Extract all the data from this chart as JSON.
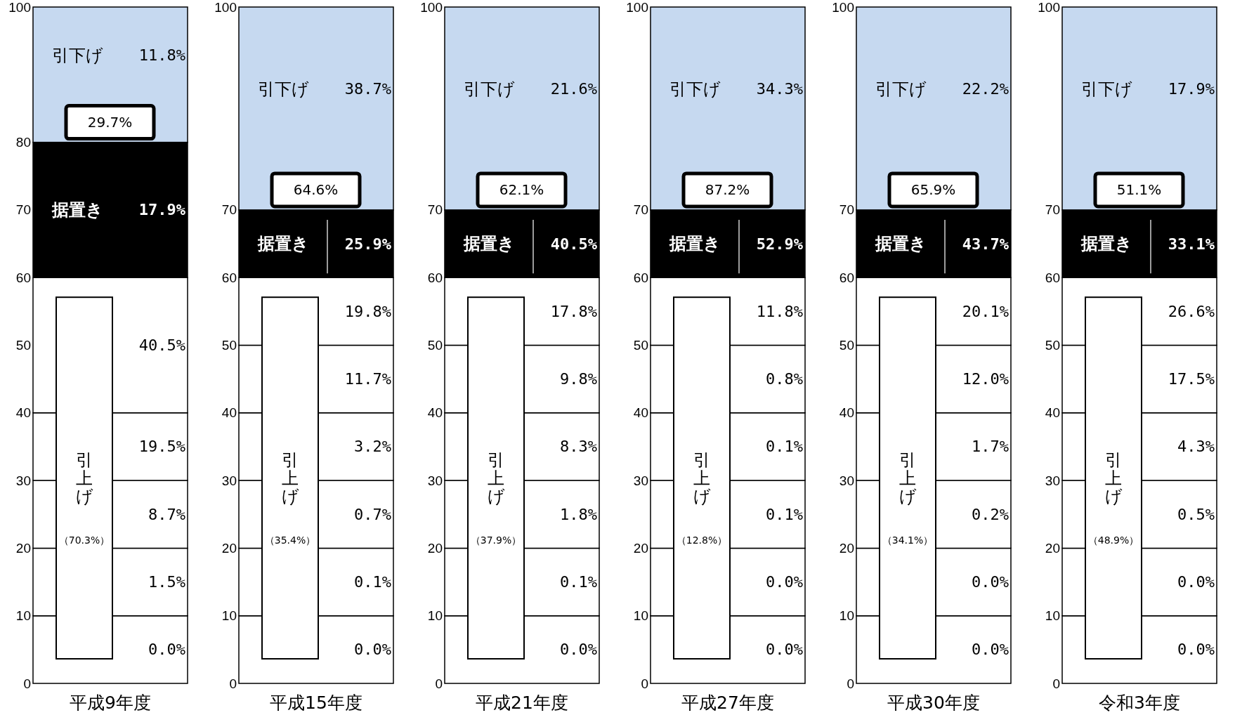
{
  "chart_data": [
    {
      "type": "bar",
      "stacked": true,
      "categories": [
        "平成9年度"
      ],
      "ylim": [
        0,
        100
      ],
      "yticks": [
        0,
        10,
        20,
        30,
        40,
        50,
        60,
        70,
        80,
        100
      ],
      "series": [
        {
          "color": "#ffffff",
          "values": [
            10
          ]
        },
        {
          "color": "#ffffff",
          "values": [
            10
          ]
        },
        {
          "color": "#ffffff",
          "values": [
            10
          ]
        },
        {
          "color": "#ffffff",
          "values": [
            10
          ]
        },
        {
          "color": "#ffffff",
          "values": [
            20
          ]
        },
        {
          "name": "据置き",
          "color": "#000000",
          "values": [
            20
          ]
        },
        {
          "name": "引下げ",
          "color": "#c6d9f0",
          "values": [
            20
          ]
        }
      ],
      "annotations": [
        {
          "text": "29.7%",
          "y": 80
        },
        "引上げ",
        "（70.3%）",
        "0.0%",
        "1.5%",
        "8.7%",
        "19.5%",
        "40.5%",
        "17.9%",
        "11.8%"
      ]
    },
    {
      "type": "bar",
      "stacked": true,
      "categories": [
        "平成15年度"
      ],
      "ylim": [
        0,
        100
      ],
      "yticks": [
        0,
        10,
        20,
        30,
        40,
        50,
        60,
        70,
        100
      ],
      "series": [
        {
          "color": "#ffffff",
          "values": [
            10
          ]
        },
        {
          "color": "#ffffff",
          "values": [
            10
          ]
        },
        {
          "color": "#ffffff",
          "values": [
            10
          ]
        },
        {
          "color": "#ffffff",
          "values": [
            10
          ]
        },
        {
          "color": "#ffffff",
          "values": [
            10
          ]
        },
        {
          "color": "#ffffff",
          "values": [
            10
          ]
        },
        {
          "name": "据置き",
          "color": "#000000",
          "values": [
            10
          ]
        },
        {
          "name": "引下げ",
          "color": "#c6d9f0",
          "values": [
            30
          ]
        }
      ],
      "annotations": [
        {
          "text": "64.6%",
          "y": 70
        },
        "引上げ",
        "（35.4%）",
        "0.0%",
        "0.1%",
        "0.7%",
        "3.2%",
        "11.7%",
        "19.8%",
        "25.9%",
        "38.7%"
      ]
    },
    {
      "type": "bar",
      "stacked": true,
      "categories": [
        "平成21年度"
      ],
      "ylim": [
        0,
        100
      ],
      "yticks": [
        0,
        10,
        20,
        30,
        40,
        50,
        60,
        70,
        100
      ],
      "series": [
        {
          "color": "#ffffff",
          "values": [
            10
          ]
        },
        {
          "color": "#ffffff",
          "values": [
            10
          ]
        },
        {
          "color": "#ffffff",
          "values": [
            10
          ]
        },
        {
          "color": "#ffffff",
          "values": [
            10
          ]
        },
        {
          "color": "#ffffff",
          "values": [
            10
          ]
        },
        {
          "color": "#ffffff",
          "values": [
            10
          ]
        },
        {
          "name": "据置き",
          "color": "#000000",
          "values": [
            10
          ]
        },
        {
          "name": "引下げ",
          "color": "#c6d9f0",
          "values": [
            30
          ]
        }
      ],
      "annotations": [
        {
          "text": "62.1%",
          "y": 70
        },
        "引上げ",
        "（37.9%）",
        "0.0%",
        "0.1%",
        "1.8%",
        "8.3%",
        "9.8%",
        "17.8%",
        "40.5%",
        "21.6%"
      ]
    },
    {
      "type": "bar",
      "stacked": true,
      "categories": [
        "平成27年度"
      ],
      "ylim": [
        0,
        100
      ],
      "yticks": [
        0,
        10,
        20,
        30,
        40,
        50,
        60,
        70,
        100
      ],
      "series": [
        {
          "color": "#ffffff",
          "values": [
            10
          ]
        },
        {
          "color": "#ffffff",
          "values": [
            10
          ]
        },
        {
          "color": "#ffffff",
          "values": [
            10
          ]
        },
        {
          "color": "#ffffff",
          "values": [
            10
          ]
        },
        {
          "color": "#ffffff",
          "values": [
            10
          ]
        },
        {
          "color": "#ffffff",
          "values": [
            10
          ]
        },
        {
          "name": "据置き",
          "color": "#000000",
          "values": [
            10
          ]
        },
        {
          "name": "引下げ",
          "color": "#c6d9f0",
          "values": [
            30
          ]
        }
      ],
      "annotations": [
        {
          "text": "87.2%",
          "y": 70
        },
        "引上げ",
        "（12.8%）",
        "0.0%",
        "0.0%",
        "0.1%",
        "0.1%",
        "0.8%",
        "11.8%",
        "52.9%",
        "34.3%"
      ]
    },
    {
      "type": "bar",
      "stacked": true,
      "categories": [
        "平成30年度"
      ],
      "ylim": [
        0,
        100
      ],
      "yticks": [
        0,
        10,
        20,
        30,
        40,
        50,
        60,
        70,
        100
      ],
      "series": [
        {
          "color": "#ffffff",
          "values": [
            10
          ]
        },
        {
          "color": "#ffffff",
          "values": [
            10
          ]
        },
        {
          "color": "#ffffff",
          "values": [
            10
          ]
        },
        {
          "color": "#ffffff",
          "values": [
            10
          ]
        },
        {
          "color": "#ffffff",
          "values": [
            10
          ]
        },
        {
          "color": "#ffffff",
          "values": [
            10
          ]
        },
        {
          "name": "据置き",
          "color": "#000000",
          "values": [
            10
          ]
        },
        {
          "name": "引下げ",
          "color": "#c6d9f0",
          "values": [
            30
          ]
        }
      ],
      "annotations": [
        {
          "text": "65.9%",
          "y": 70
        },
        "引上げ",
        "（34.1%）",
        "0.0%",
        "0.0%",
        "0.2%",
        "1.7%",
        "12.0%",
        "20.1%",
        "43.7%",
        "22.2%"
      ]
    },
    {
      "type": "bar",
      "stacked": true,
      "categories": [
        "令和3年度"
      ],
      "ylim": [
        0,
        100
      ],
      "yticks": [
        0,
        10,
        20,
        30,
        40,
        50,
        60,
        70,
        100
      ],
      "series": [
        {
          "color": "#ffffff",
          "values": [
            10
          ]
        },
        {
          "color": "#ffffff",
          "values": [
            10
          ]
        },
        {
          "color": "#ffffff",
          "values": [
            10
          ]
        },
        {
          "color": "#ffffff",
          "values": [
            10
          ]
        },
        {
          "color": "#ffffff",
          "values": [
            10
          ]
        },
        {
          "color": "#ffffff",
          "values": [
            10
          ]
        },
        {
          "name": "据置き",
          "color": "#000000",
          "values": [
            10
          ]
        },
        {
          "name": "引下げ",
          "color": "#c6d9f0",
          "values": [
            30
          ]
        }
      ],
      "annotations": [
        {
          "text": "51.1%",
          "y": 70
        },
        "引上げ",
        "（48.9%）",
        "0.0%",
        "0.0%",
        "0.5%",
        "4.3%",
        "17.5%",
        "26.6%",
        "33.1%",
        "17.9%"
      ]
    }
  ]
}
